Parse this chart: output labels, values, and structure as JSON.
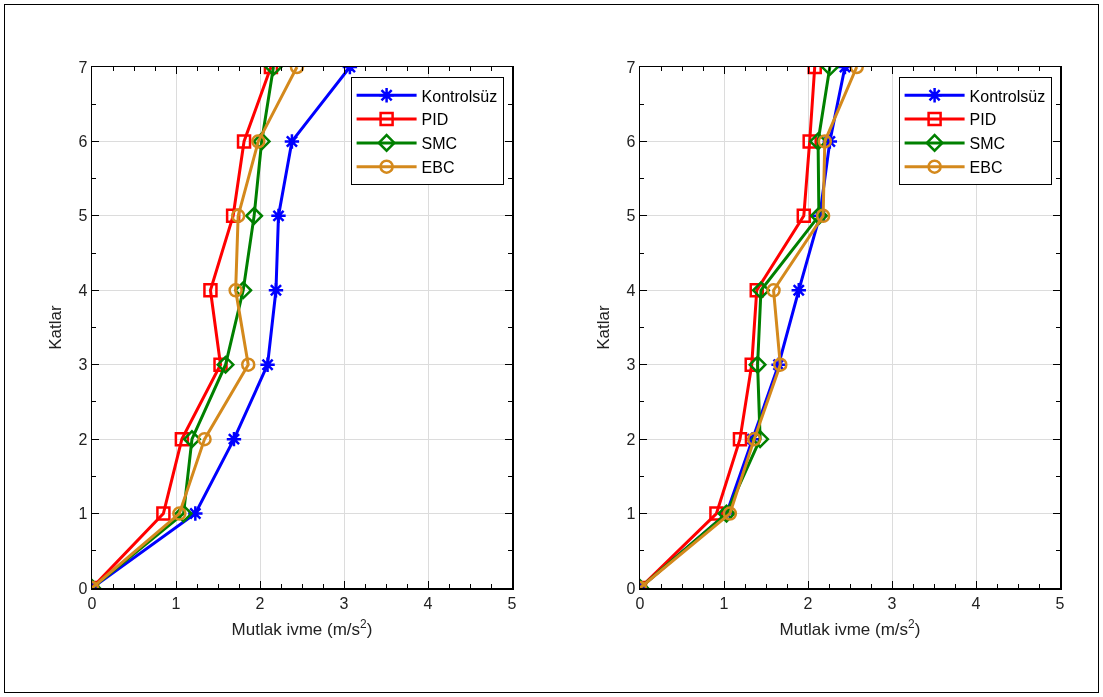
{
  "chart_data": [
    {
      "type": "line",
      "xlabel": "Mutlak ivme (m/s$^{2}$)",
      "ylabel": "Katlar",
      "xlim": [
        0,
        5
      ],
      "xticks": [
        0,
        1,
        2,
        3,
        4,
        5
      ],
      "ylim": [
        0,
        7
      ],
      "yticks": [
        0,
        1,
        2,
        3,
        4,
        5,
        6,
        7
      ],
      "grid": true,
      "legend": "top right",
      "line_style": "solid",
      "series": [
        {
          "name": "Kontrolsüz",
          "color": "#0000ff",
          "marker": "cross",
          "x": [
            0,
            1.23,
            1.69,
            2.09,
            2.19,
            2.22,
            2.38,
            3.07
          ],
          "values": [
            0,
            1,
            2,
            3,
            4,
            5,
            6,
            7
          ]
        },
        {
          "name": "PID",
          "color": "#ff0000",
          "marker": "square",
          "x": [
            0,
            0.85,
            1.07,
            1.53,
            1.41,
            1.68,
            1.81,
            2.13
          ],
          "values": [
            0,
            1,
            2,
            3,
            4,
            5,
            6,
            7
          ]
        },
        {
          "name": "SMC",
          "color": "#008000",
          "marker": "diamond",
          "x": [
            0,
            1.09,
            1.19,
            1.59,
            1.8,
            1.93,
            2.02,
            2.16
          ],
          "values": [
            0,
            1,
            2,
            3,
            4,
            5,
            6,
            7
          ]
        },
        {
          "name": "EBC",
          "color": "#d4891c",
          "marker": "circle",
          "x": [
            0,
            1.04,
            1.34,
            1.86,
            1.71,
            1.74,
            1.98,
            2.44
          ],
          "values": [
            0,
            1,
            2,
            3,
            4,
            5,
            6,
            7
          ]
        }
      ]
    },
    {
      "type": "line",
      "xlabel": "Mutlak ivme (m/s$^{2}$)",
      "ylabel": "Katlar",
      "xlim": [
        0,
        5
      ],
      "xticks": [
        0,
        1,
        2,
        3,
        4,
        5
      ],
      "ylim": [
        0,
        7
      ],
      "yticks": [
        0,
        1,
        2,
        3,
        4,
        5,
        6,
        7
      ],
      "grid": true,
      "legend": "top right",
      "line_style": "solid",
      "series": [
        {
          "name": "Kontrolsüz",
          "color": "#0000ff",
          "marker": "cross",
          "x": [
            0,
            1.03,
            1.34,
            1.65,
            1.89,
            2.14,
            2.26,
            2.44
          ],
          "values": [
            0,
            1,
            2,
            3,
            4,
            5,
            6,
            7
          ]
        },
        {
          "name": "PID",
          "color": "#ff0000",
          "marker": "square",
          "x": [
            0,
            0.91,
            1.19,
            1.33,
            1.39,
            1.95,
            2.02,
            2.08
          ],
          "values": [
            0,
            1,
            2,
            3,
            4,
            5,
            6,
            7
          ]
        },
        {
          "name": "SMC",
          "color": "#008000",
          "marker": "diamond",
          "x": [
            0,
            1.03,
            1.43,
            1.4,
            1.44,
            2.13,
            2.12,
            2.26
          ],
          "values": [
            0,
            1,
            2,
            3,
            4,
            5,
            6,
            7
          ]
        },
        {
          "name": "EBC",
          "color": "#d4891c",
          "marker": "circle",
          "x": [
            0,
            1.07,
            1.36,
            1.67,
            1.59,
            2.18,
            2.2,
            2.58
          ],
          "values": [
            0,
            1,
            2,
            3,
            4,
            5,
            6,
            7
          ]
        }
      ]
    }
  ]
}
